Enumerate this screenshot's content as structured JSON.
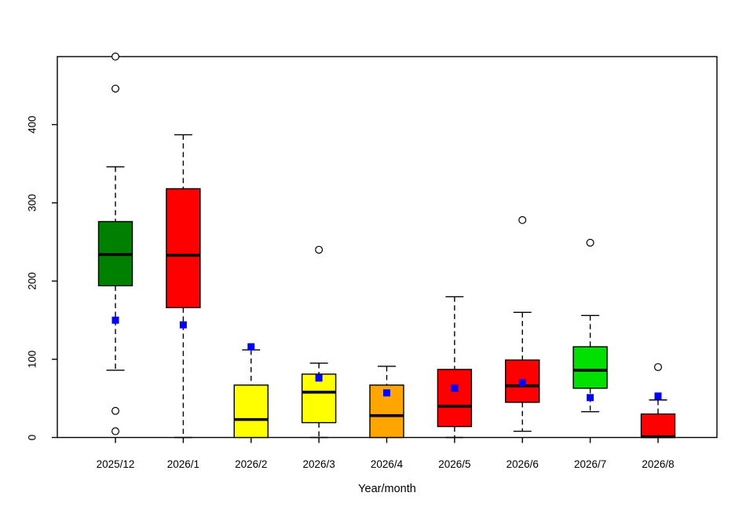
{
  "chart_data": {
    "type": "boxplot",
    "title": "",
    "xlabel": "Year/month",
    "ylabel": "",
    "ylim": [
      0,
      490
    ],
    "yticks": [
      0,
      100,
      200,
      300,
      400
    ],
    "grid": false,
    "legend": "none",
    "frame": true,
    "mean_marker": {
      "shape": "square",
      "color": "#0000ff"
    },
    "outlier_marker": {
      "shape": "open-circle",
      "color": "#000000"
    },
    "categories": [
      "2025/12",
      "2026/1",
      "2026/2",
      "2026/3",
      "2026/4",
      "2026/5",
      "2026/6",
      "2026/7",
      "2026/8"
    ],
    "series": [
      {
        "category": "2025/12",
        "color": "#008000",
        "low": 86,
        "q1": 194,
        "median": 234,
        "q3": 276,
        "high": 346,
        "mean": 150,
        "outliers": [
          487,
          446,
          34,
          8
        ]
      },
      {
        "category": "2026/1",
        "color": "#ff0000",
        "low": 0,
        "q1": 166,
        "median": 233,
        "q3": 318,
        "high": 387,
        "mean": 144,
        "outliers": []
      },
      {
        "category": "2026/2",
        "color": "#ffff00",
        "low": 0,
        "q1": 0,
        "median": 23,
        "q3": 67,
        "high": 112,
        "mean": 116,
        "outliers": []
      },
      {
        "category": "2026/3",
        "color": "#ffff00",
        "low": 0,
        "q1": 19,
        "median": 58,
        "q3": 81,
        "high": 95,
        "mean": 76,
        "outliers": [
          240
        ]
      },
      {
        "category": "2026/4",
        "color": "#ffa500",
        "low": 0,
        "q1": 0,
        "median": 28,
        "q3": 67,
        "high": 91,
        "mean": 57,
        "outliers": []
      },
      {
        "category": "2026/5",
        "color": "#ff0000",
        "low": 0,
        "q1": 14,
        "median": 40,
        "q3": 87,
        "high": 180,
        "mean": 63,
        "outliers": []
      },
      {
        "category": "2026/6",
        "color": "#ff0000",
        "low": 8,
        "q1": 45,
        "median": 66,
        "q3": 99,
        "high": 160,
        "mean": 70,
        "outliers": [
          278
        ]
      },
      {
        "category": "2026/7",
        "color": "#00e000",
        "low": 33,
        "q1": 63,
        "median": 86,
        "q3": 116,
        "high": 156,
        "mean": 51,
        "outliers": [
          249
        ]
      },
      {
        "category": "2026/8",
        "color": "#ff0000",
        "low": 0,
        "q1": 0,
        "median": 1,
        "q3": 30,
        "high": 48,
        "mean": 53,
        "outliers": [
          90
        ]
      }
    ]
  }
}
